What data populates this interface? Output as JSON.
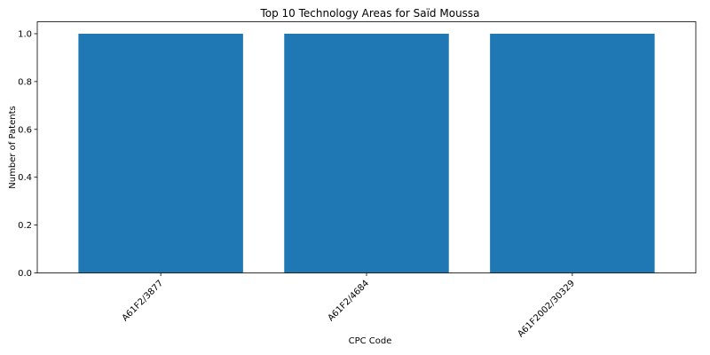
{
  "chart_data": {
    "type": "bar",
    "title": "Top 10 Technology Areas for Saïd Moussa",
    "xlabel": "CPC Code",
    "ylabel": "Number of Patents",
    "categories": [
      "A61F2/3877",
      "A61F2/4684",
      "A61F2002/30329"
    ],
    "values": [
      1,
      1,
      1
    ],
    "ylim": [
      0,
      1.05
    ],
    "yticks": [
      "0.0",
      "0.2",
      "0.4",
      "0.6",
      "0.8",
      "1.0"
    ],
    "grid": false,
    "bar_color": "#1f77b4"
  }
}
